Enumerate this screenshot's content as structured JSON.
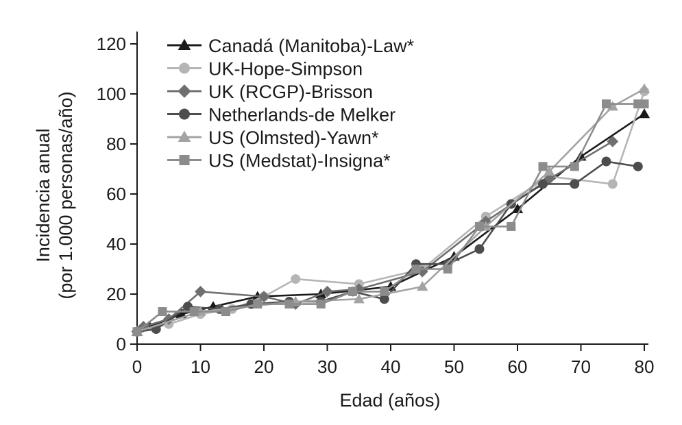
{
  "chart_data": {
    "type": "line",
    "title": "",
    "xlabel": "Edad (años)",
    "ylabel_lines": [
      "Incidencia anual",
      "(por 1.000 personas/año)"
    ],
    "xlim": [
      0,
      80
    ],
    "ylim": [
      0,
      120
    ],
    "xticks": [
      0,
      10,
      20,
      30,
      40,
      50,
      60,
      70,
      80
    ],
    "yticks": [
      0,
      20,
      40,
      60,
      80,
      100,
      120
    ],
    "grid": false,
    "legend_position": "top-left",
    "series": [
      {
        "name": "Canadá (Manitoba)-Law*",
        "marker": "triangle",
        "color": "#1a1a1a",
        "points": [
          [
            0,
            5
          ],
          [
            2,
            7
          ],
          [
            7,
            12
          ],
          [
            12,
            15
          ],
          [
            19,
            19
          ],
          [
            29,
            20
          ],
          [
            40,
            23
          ],
          [
            50,
            35
          ],
          [
            60,
            54
          ],
          [
            70,
            75
          ],
          [
            80,
            92
          ]
        ]
      },
      {
        "name": "UK-Hope-Simpson",
        "marker": "circle",
        "color": "#b5b5b5",
        "points": [
          [
            0,
            5
          ],
          [
            5,
            8
          ],
          [
            10,
            12
          ],
          [
            15,
            14
          ],
          [
            20,
            19
          ],
          [
            25,
            26
          ],
          [
            35,
            24
          ],
          [
            45,
            30
          ],
          [
            55,
            51
          ],
          [
            65,
            67
          ],
          [
            75,
            64
          ],
          [
            80,
            101
          ]
        ]
      },
      {
        "name": "UK (RCGP)-Brisson",
        "marker": "diamond",
        "color": "#6f6f6f",
        "points": [
          [
            0,
            5
          ],
          [
            1,
            7
          ],
          [
            5,
            10
          ],
          [
            10,
            21
          ],
          [
            20,
            19
          ],
          [
            25,
            16
          ],
          [
            30,
            21
          ],
          [
            35,
            22
          ],
          [
            45,
            29
          ],
          [
            55,
            49
          ],
          [
            65,
            66
          ],
          [
            75,
            81
          ]
        ]
      },
      {
        "name": "Netherlands-de Melker",
        "marker": "circle",
        "color": "#4d4d4d",
        "points": [
          [
            0,
            5
          ],
          [
            3,
            6
          ],
          [
            8,
            15
          ],
          [
            13,
            14
          ],
          [
            18,
            16
          ],
          [
            24,
            17
          ],
          [
            29,
            17
          ],
          [
            34,
            21
          ],
          [
            39,
            18
          ],
          [
            44,
            32
          ],
          [
            49,
            32
          ],
          [
            54,
            38
          ],
          [
            59,
            56
          ],
          [
            64,
            64
          ],
          [
            69,
            64
          ],
          [
            74,
            73
          ],
          [
            79,
            71
          ]
        ]
      },
      {
        "name": "US (Olmsted)-Yawn*",
        "marker": "triangle",
        "color": "#a3a3a3",
        "points": [
          [
            0,
            5
          ],
          [
            10,
            13
          ],
          [
            25,
            17
          ],
          [
            35,
            18
          ],
          [
            45,
            23
          ],
          [
            55,
            47
          ],
          [
            65,
            69
          ],
          [
            75,
            95
          ],
          [
            80,
            102
          ]
        ]
      },
      {
        "name": "US (Medstat)-Insigna*",
        "marker": "square",
        "color": "#8c8c8c",
        "points": [
          [
            0,
            5
          ],
          [
            4,
            13
          ],
          [
            9,
            13
          ],
          [
            14,
            13
          ],
          [
            19,
            16
          ],
          [
            24,
            16
          ],
          [
            29,
            16
          ],
          [
            34,
            21
          ],
          [
            39,
            21
          ],
          [
            44,
            30
          ],
          [
            49,
            30
          ],
          [
            54,
            47
          ],
          [
            59,
            47
          ],
          [
            64,
            71
          ],
          [
            69,
            71
          ],
          [
            74,
            96
          ],
          [
            79,
            96
          ],
          [
            80,
            96
          ]
        ]
      }
    ]
  }
}
